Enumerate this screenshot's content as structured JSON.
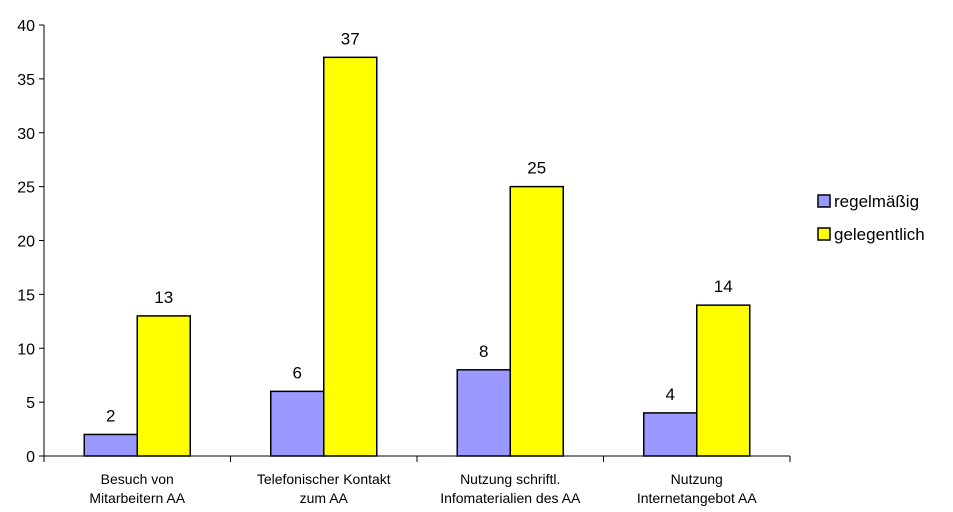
{
  "chart_data": {
    "type": "bar",
    "categories": [
      [
        "Besuch von",
        "Mitarbeitern AA"
      ],
      [
        "Telefonischer Kontakt",
        "zum AA"
      ],
      [
        "Nutzung schriftl.",
        "Infomaterialien des AA"
      ],
      [
        "Nutzung",
        "Internetangebot AA"
      ]
    ],
    "series": [
      {
        "name": "regelmäßig",
        "values": [
          2,
          6,
          8,
          4
        ],
        "color": "#9999ff"
      },
      {
        "name": "gelegentlich",
        "values": [
          13,
          37,
          25,
          14
        ],
        "color": "#ffff00"
      }
    ],
    "ylim": [
      0,
      40
    ],
    "yticks": [
      0,
      5,
      10,
      15,
      20,
      25,
      30,
      35,
      40
    ],
    "data_labels": true,
    "grid": false,
    "legend_position": "right"
  }
}
